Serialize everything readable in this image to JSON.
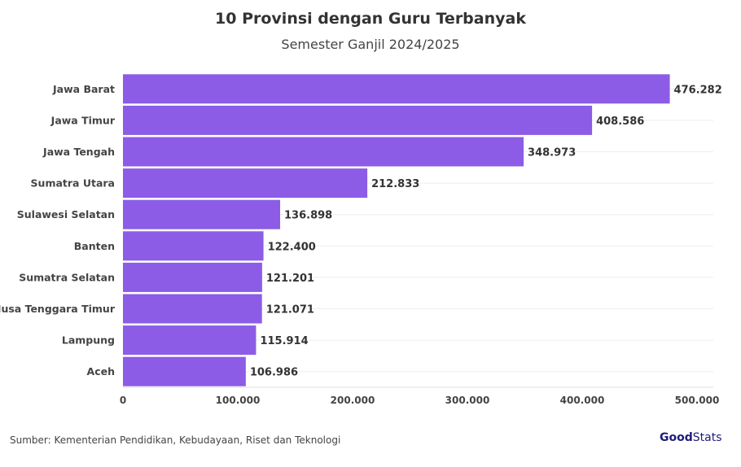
{
  "chart_data": {
    "type": "bar",
    "orientation": "horizontal",
    "title": "10 Provinsi dengan Guru Terbanyak",
    "subtitle": "Semester Ganjil 2024/2025",
    "categories": [
      "Jawa Barat",
      "Jawa Timur",
      "Jawa Tengah",
      "Sumatra Utara",
      "Sulawesi Selatan",
      "Banten",
      "Sumatra Selatan",
      "Nusa Tenggara Timur",
      "Lampung",
      "Aceh"
    ],
    "values": [
      476282,
      408586,
      348973,
      212833,
      136898,
      122400,
      121201,
      121071,
      115914,
      106986
    ],
    "data_labels": [
      "476.282",
      "408.586",
      "348.973",
      "212.833",
      "136.898",
      "122.400",
      "121.201",
      "121.071",
      "115.914",
      "106.986"
    ],
    "xlim": [
      0,
      500000
    ],
    "x_ticks": [
      0,
      100000,
      200000,
      300000,
      400000,
      500000
    ],
    "x_tick_labels": [
      "0",
      "100.000",
      "200.000",
      "300.000",
      "400.000",
      "500.000"
    ],
    "grid": true,
    "bar_color": "#8c5ce6"
  },
  "footer": {
    "source": "Sumber: Kementerian Pendidikan, Kebudayaan, Riset dan Teknologi",
    "logo_text_bold": "Good",
    "logo_text": "Stats"
  }
}
